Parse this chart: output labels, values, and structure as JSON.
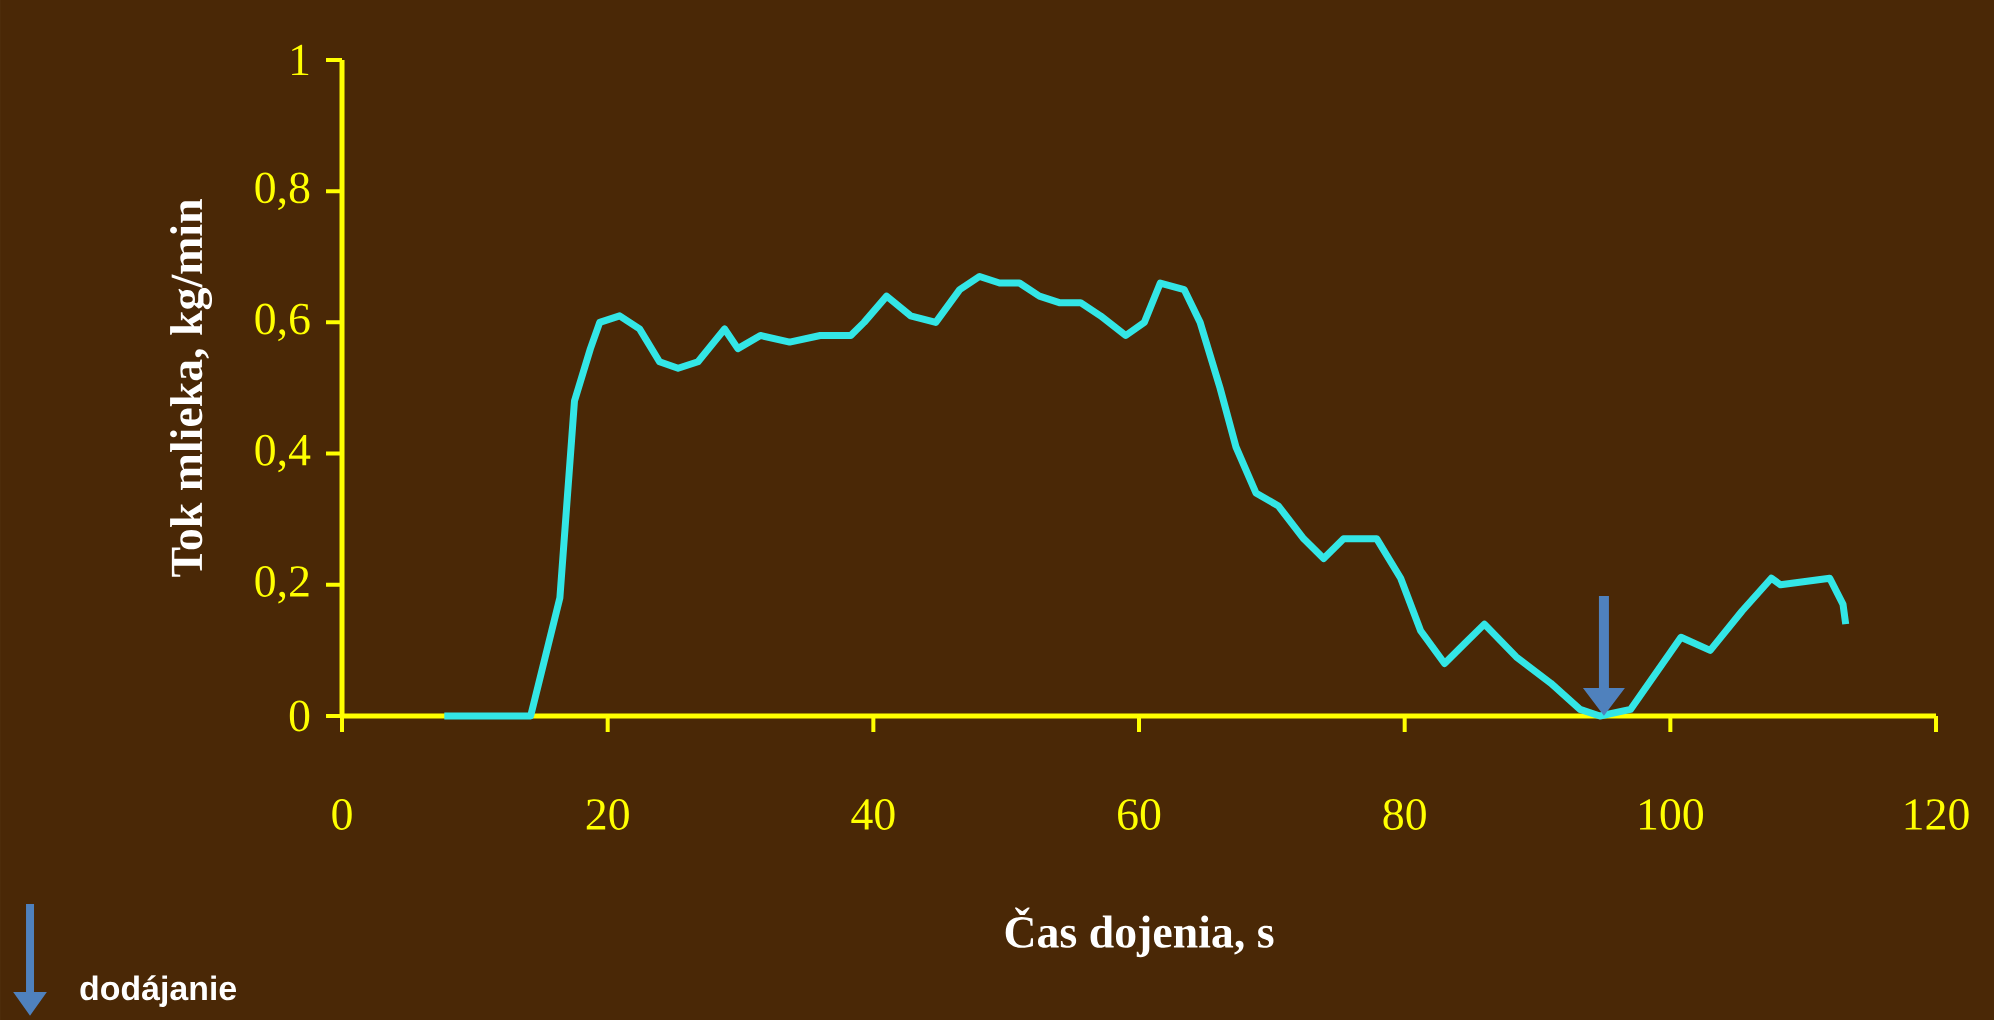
{
  "chart_data": {
    "type": "line",
    "xlabel": "Čas dojenia, s",
    "ylabel": "Tok mlieka, kg/min",
    "xlim": [
      0,
      120
    ],
    "xticks": [
      0,
      20,
      40,
      60,
      80,
      100,
      120
    ],
    "ylim": [
      0,
      1
    ],
    "yticks": [
      0,
      {
        "value": 0.2,
        "label": "0,2"
      },
      {
        "value": 0.4,
        "label": "0,4"
      },
      {
        "value": 0.6,
        "label": "0,6"
      },
      {
        "value": 0.8,
        "label": "0,8"
      },
      1
    ],
    "grid": false,
    "marker": "none",
    "line_style": "solid",
    "series": [
      {
        "color": "#33e6e6",
        "x": [
          7.7,
          14.2,
          16.4,
          17.5,
          18.7,
          19.4,
          20.9,
          22.4,
          23.9,
          25.3,
          26.8,
          28.8,
          29.8,
          31.5,
          33.7,
          36,
          38.3,
          39.3,
          41,
          42.8,
          44.7,
          46.5,
          48,
          49.5,
          51,
          52.5,
          54,
          55.6,
          57.1,
          59,
          60.4,
          61.6,
          63.4,
          64.6,
          66.1,
          67.3,
          68.8,
          70.5,
          72.4,
          73.9,
          75.4,
          77.9,
          79.7,
          81.2,
          83,
          84.5,
          86,
          88.4,
          91,
          93.2,
          94.7,
          97,
          100.8,
          103,
          105.4,
          107.6,
          108.3,
          112,
          113,
          113.2
        ],
        "values": [
          0,
          0,
          0.18,
          0.48,
          0.56,
          0.6,
          0.61,
          0.59,
          0.54,
          0.53,
          0.54,
          0.59,
          0.56,
          0.58,
          0.57,
          0.58,
          0.58,
          0.6,
          0.64,
          0.61,
          0.6,
          0.65,
          0.67,
          0.66,
          0.66,
          0.64,
          0.63,
          0.63,
          0.61,
          0.58,
          0.6,
          0.66,
          0.65,
          0.6,
          0.5,
          0.41,
          0.34,
          0.32,
          0.27,
          0.24,
          0.27,
          0.27,
          0.21,
          0.13,
          0.08,
          0.11,
          0.14,
          0.09,
          0.05,
          0.01,
          0,
          0.01,
          0.12,
          0.1,
          0.16,
          0.21,
          0.2,
          0.21,
          0.17,
          0.14
        ]
      }
    ],
    "ref_lines": [
      {
        "axis": "x",
        "value": 95,
        "color": "#4f81bd"
      }
    ],
    "annotations": [
      "dodájanie"
    ]
  }
}
